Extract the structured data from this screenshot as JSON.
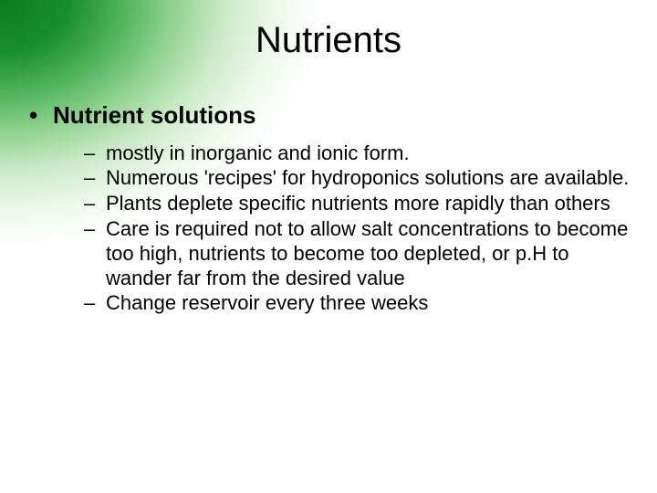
{
  "slide": {
    "title": "Nutrients",
    "title_fontsize": 40,
    "title_color": "#000000",
    "background": {
      "gradient_center": "top-left",
      "colors": [
        "#0d7a1f",
        "#1a8f2d",
        "#4fb35a",
        "#8fd18e",
        "#c8e9c4",
        "#eef8ec",
        "#ffffff"
      ]
    },
    "body_text_color": "#000000",
    "bullet_l1_fontsize": 26,
    "bullet_l1_weight": 700,
    "bullet_l2_fontsize": 22,
    "bullet_l2_weight": 400,
    "bullets": [
      {
        "marker": "•",
        "text": "Nutrient solutions",
        "sub": [
          {
            "marker": "–",
            "text": "mostly in inorganic and ionic form."
          },
          {
            "marker": "–",
            "text": "Numerous 'recipes' for hydroponics solutions are available."
          },
          {
            "marker": "–",
            "text": "Plants deplete specific nutrients more rapidly than others"
          },
          {
            "marker": "–",
            "text": "Care is required not to allow salt concentrations to become too high, nutrients to become too depleted, or p.H to wander far from the desired value"
          },
          {
            "marker": "–",
            "text": "Change reservoir every three weeks"
          }
        ]
      }
    ]
  }
}
